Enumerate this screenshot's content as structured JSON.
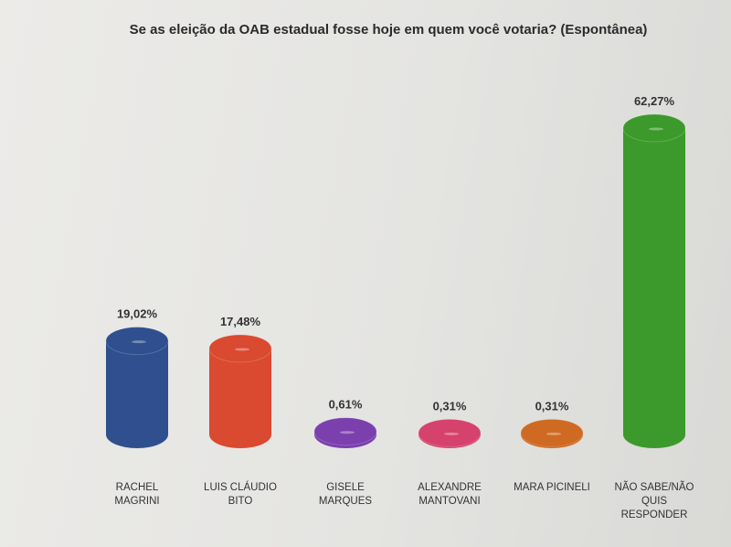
{
  "chart_data": {
    "type": "bar",
    "title": "Se as eleição da OAB estadual fosse hoje em quem você votaria? (Espontânea)",
    "categories": [
      "RACHEL\nMAGRINI",
      "LUIS CLÁUDIO\nBITO",
      "GISELE\nMARQUES",
      "ALEXANDRE\nMANTOVANI",
      "MARA PICINELI",
      "NÃO SABE/NÃO\nQUIS\nRESPONDER"
    ],
    "values": [
      19.02,
      17.48,
      0.61,
      0.31,
      0.31,
      62.27
    ],
    "value_labels": [
      "19,02%",
      "17,48%",
      "0,61%",
      "0,31%",
      "0,31%",
      "62,27%"
    ],
    "colors": [
      "#2f4f8e",
      "#d94a30",
      "#7b3fae",
      "#d5426c",
      "#cf6a22",
      "#3b9a2b"
    ]
  }
}
